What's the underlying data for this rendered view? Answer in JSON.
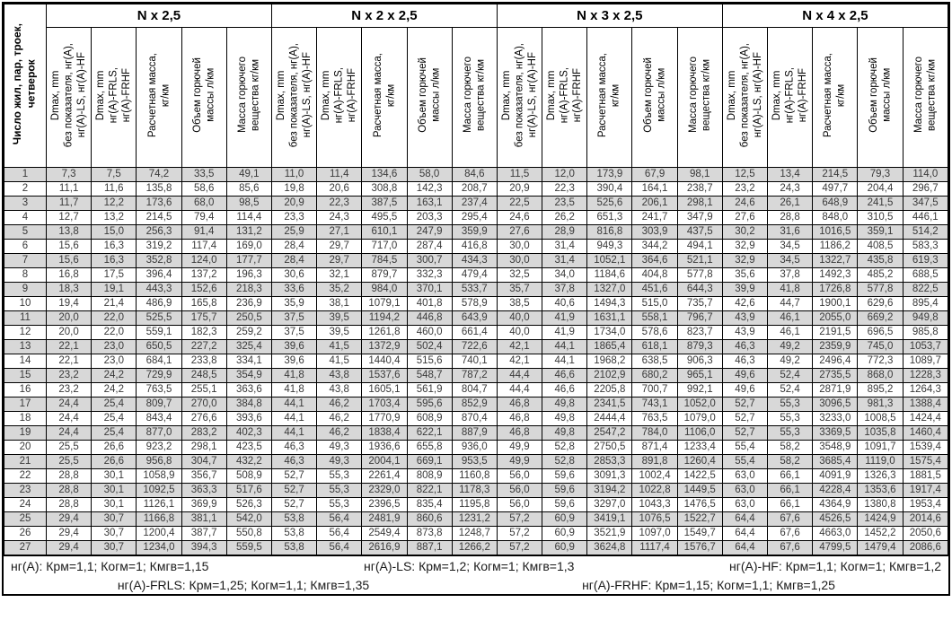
{
  "table": {
    "corner_header": "Число жил, пар, троек,\nчетверок",
    "groups": [
      "N x 2,5",
      "N x 2 x 2,5",
      "N x 3 x 2,5",
      "N x 4 x 2,5"
    ],
    "column_headers": [
      "Dmax, mm\nбез показателя, нг(А),\nнг(А)-LS, нг(А)-HF",
      "Dmax, mm\nнг(А)-FRLS,\nнг(А)-FRHF",
      "Расчетная масса,\nкг/км",
      "Объем горючей\nмассы л/км",
      "Масса горючего\nвещества кг/км"
    ],
    "rows": [
      [
        "1",
        "7,3",
        "7,5",
        "74,2",
        "33,5",
        "49,1",
        "11,0",
        "11,4",
        "134,6",
        "58,0",
        "84,6",
        "11,5",
        "12,0",
        "173,9",
        "67,9",
        "98,1",
        "12,5",
        "13,4",
        "214,5",
        "79,3",
        "114,0"
      ],
      [
        "2",
        "11,1",
        "11,6",
        "135,8",
        "58,6",
        "85,6",
        "19,8",
        "20,6",
        "308,8",
        "142,3",
        "208,7",
        "20,9",
        "22,3",
        "390,4",
        "164,1",
        "238,7",
        "23,2",
        "24,3",
        "497,7",
        "204,4",
        "296,7"
      ],
      [
        "3",
        "11,7",
        "12,2",
        "173,6",
        "68,0",
        "98,5",
        "20,9",
        "22,3",
        "387,5",
        "163,1",
        "237,4",
        "22,5",
        "23,5",
        "525,6",
        "206,1",
        "298,1",
        "24,6",
        "26,1",
        "648,9",
        "241,5",
        "347,5"
      ],
      [
        "4",
        "12,7",
        "13,2",
        "214,5",
        "79,4",
        "114,4",
        "23,3",
        "24,3",
        "495,5",
        "203,3",
        "295,4",
        "24,6",
        "26,2",
        "651,3",
        "241,7",
        "347,9",
        "27,6",
        "28,8",
        "848,0",
        "310,5",
        "446,1"
      ],
      [
        "5",
        "13,8",
        "15,0",
        "256,3",
        "91,4",
        "131,2",
        "25,9",
        "27,1",
        "610,1",
        "247,9",
        "359,9",
        "27,6",
        "28,9",
        "816,8",
        "303,9",
        "437,5",
        "30,2",
        "31,6",
        "1016,5",
        "359,1",
        "514,2"
      ],
      [
        "6",
        "15,6",
        "16,3",
        "319,2",
        "117,4",
        "169,0",
        "28,4",
        "29,7",
        "717,0",
        "287,4",
        "416,8",
        "30,0",
        "31,4",
        "949,3",
        "344,2",
        "494,1",
        "32,9",
        "34,5",
        "1186,2",
        "408,5",
        "583,3"
      ],
      [
        "7",
        "15,6",
        "16,3",
        "352,8",
        "124,0",
        "177,7",
        "28,4",
        "29,7",
        "784,5",
        "300,7",
        "434,3",
        "30,0",
        "31,4",
        "1052,1",
        "364,6",
        "521,1",
        "32,9",
        "34,5",
        "1322,7",
        "435,8",
        "619,3"
      ],
      [
        "8",
        "16,8",
        "17,5",
        "396,4",
        "137,2",
        "196,3",
        "30,6",
        "32,1",
        "879,7",
        "332,3",
        "479,4",
        "32,5",
        "34,0",
        "1184,6",
        "404,8",
        "577,8",
        "35,6",
        "37,8",
        "1492,3",
        "485,2",
        "688,5"
      ],
      [
        "9",
        "18,3",
        "19,1",
        "443,3",
        "152,6",
        "218,3",
        "33,6",
        "35,2",
        "984,0",
        "370,1",
        "533,7",
        "35,7",
        "37,8",
        "1327,0",
        "451,6",
        "644,3",
        "39,9",
        "41,8",
        "1726,8",
        "577,8",
        "822,5"
      ],
      [
        "10",
        "19,4",
        "21,4",
        "486,9",
        "165,8",
        "236,9",
        "35,9",
        "38,1",
        "1079,1",
        "401,8",
        "578,9",
        "38,5",
        "40,6",
        "1494,3",
        "515,0",
        "735,7",
        "42,6",
        "44,7",
        "1900,1",
        "629,6",
        "895,4"
      ],
      [
        "11",
        "20,0",
        "22,0",
        "525,5",
        "175,7",
        "250,5",
        "37,5",
        "39,5",
        "1194,2",
        "446,8",
        "643,9",
        "40,0",
        "41,9",
        "1631,1",
        "558,1",
        "796,7",
        "43,9",
        "46,1",
        "2055,0",
        "669,2",
        "949,8"
      ],
      [
        "12",
        "20,0",
        "22,0",
        "559,1",
        "182,3",
        "259,2",
        "37,5",
        "39,5",
        "1261,8",
        "460,0",
        "661,4",
        "40,0",
        "41,9",
        "1734,0",
        "578,6",
        "823,7",
        "43,9",
        "46,1",
        "2191,5",
        "696,5",
        "985,8"
      ],
      [
        "13",
        "22,1",
        "23,0",
        "650,5",
        "227,2",
        "325,4",
        "39,6",
        "41,5",
        "1372,9",
        "502,4",
        "722,6",
        "42,1",
        "44,1",
        "1865,4",
        "618,1",
        "879,3",
        "46,3",
        "49,2",
        "2359,9",
        "745,0",
        "1053,7"
      ],
      [
        "14",
        "22,1",
        "23,0",
        "684,1",
        "233,8",
        "334,1",
        "39,6",
        "41,5",
        "1440,4",
        "515,6",
        "740,1",
        "42,1",
        "44,1",
        "1968,2",
        "638,5",
        "906,3",
        "46,3",
        "49,2",
        "2496,4",
        "772,3",
        "1089,7"
      ],
      [
        "15",
        "23,2",
        "24,2",
        "729,9",
        "248,5",
        "354,9",
        "41,8",
        "43,8",
        "1537,6",
        "548,7",
        "787,2",
        "44,4",
        "46,6",
        "2102,9",
        "680,2",
        "965,1",
        "49,6",
        "52,4",
        "2735,5",
        "868,0",
        "1228,3"
      ],
      [
        "16",
        "23,2",
        "24,2",
        "763,5",
        "255,1",
        "363,6",
        "41,8",
        "43,8",
        "1605,1",
        "561,9",
        "804,7",
        "44,4",
        "46,6",
        "2205,8",
        "700,7",
        "992,1",
        "49,6",
        "52,4",
        "2871,9",
        "895,2",
        "1264,3"
      ],
      [
        "17",
        "24,4",
        "25,4",
        "809,7",
        "270,0",
        "384,8",
        "44,1",
        "46,2",
        "1703,4",
        "595,6",
        "852,9",
        "46,8",
        "49,8",
        "2341,5",
        "743,1",
        "1052,0",
        "52,7",
        "55,3",
        "3096,5",
        "981,3",
        "1388,4"
      ],
      [
        "18",
        "24,4",
        "25,4",
        "843,4",
        "276,6",
        "393,6",
        "44,1",
        "46,2",
        "1770,9",
        "608,9",
        "870,4",
        "46,8",
        "49,8",
        "2444,4",
        "763,5",
        "1079,0",
        "52,7",
        "55,3",
        "3233,0",
        "1008,5",
        "1424,4"
      ],
      [
        "19",
        "24,4",
        "25,4",
        "877,0",
        "283,2",
        "402,3",
        "44,1",
        "46,2",
        "1838,4",
        "622,1",
        "887,9",
        "46,8",
        "49,8",
        "2547,2",
        "784,0",
        "1106,0",
        "52,7",
        "55,3",
        "3369,5",
        "1035,8",
        "1460,4"
      ],
      [
        "20",
        "25,5",
        "26,6",
        "923,2",
        "298,1",
        "423,5",
        "46,3",
        "49,3",
        "1936,6",
        "655,8",
        "936,0",
        "49,9",
        "52,8",
        "2750,5",
        "871,4",
        "1233,4",
        "55,4",
        "58,2",
        "3548,9",
        "1091,7",
        "1539,4"
      ],
      [
        "21",
        "25,5",
        "26,6",
        "956,8",
        "304,7",
        "432,2",
        "46,3",
        "49,3",
        "2004,1",
        "669,1",
        "953,5",
        "49,9",
        "52,8",
        "2853,3",
        "891,8",
        "1260,4",
        "55,4",
        "58,2",
        "3685,4",
        "1119,0",
        "1575,4"
      ],
      [
        "22",
        "28,8",
        "30,1",
        "1058,9",
        "356,7",
        "508,9",
        "52,7",
        "55,3",
        "2261,4",
        "808,9",
        "1160,8",
        "56,0",
        "59,6",
        "3091,3",
        "1002,4",
        "1422,5",
        "63,0",
        "66,1",
        "4091,9",
        "1326,3",
        "1881,5"
      ],
      [
        "23",
        "28,8",
        "30,1",
        "1092,5",
        "363,3",
        "517,6",
        "52,7",
        "55,3",
        "2329,0",
        "822,1",
        "1178,3",
        "56,0",
        "59,6",
        "3194,2",
        "1022,8",
        "1449,5",
        "63,0",
        "66,1",
        "4228,4",
        "1353,6",
        "1917,4"
      ],
      [
        "24",
        "28,8",
        "30,1",
        "1126,1",
        "369,9",
        "526,3",
        "52,7",
        "55,3",
        "2396,5",
        "835,4",
        "1195,8",
        "56,0",
        "59,6",
        "3297,0",
        "1043,3",
        "1476,5",
        "63,0",
        "66,1",
        "4364,9",
        "1380,8",
        "1953,4"
      ],
      [
        "25",
        "29,4",
        "30,7",
        "1166,8",
        "381,1",
        "542,0",
        "53,8",
        "56,4",
        "2481,9",
        "860,6",
        "1231,2",
        "57,2",
        "60,9",
        "3419,1",
        "1076,5",
        "1522,7",
        "64,4",
        "67,6",
        "4526,5",
        "1424,9",
        "2014,6"
      ],
      [
        "26",
        "29,4",
        "30,7",
        "1200,4",
        "387,7",
        "550,8",
        "53,8",
        "56,4",
        "2549,4",
        "873,8",
        "1248,7",
        "57,2",
        "60,9",
        "3521,9",
        "1097,0",
        "1549,7",
        "64,4",
        "67,6",
        "4663,0",
        "1452,2",
        "2050,6"
      ],
      [
        "27",
        "29,4",
        "30,7",
        "1234,0",
        "394,3",
        "559,5",
        "53,8",
        "56,4",
        "2616,9",
        "887,1",
        "1266,2",
        "57,2",
        "60,9",
        "3624,8",
        "1117,4",
        "1576,7",
        "64,4",
        "67,6",
        "4799,5",
        "1479,4",
        "2086,6"
      ]
    ]
  },
  "footer": {
    "line1": [
      "нг(А): Крм=1,1;  Когм=1;  Кмгв=1,15",
      "нг(А)-LS: Крм=1,2;  Когм=1;  Кмгв=1,3",
      "нг(А)-HF: Крм=1,1;  Когм=1;  Кмгв=1,2"
    ],
    "line2": [
      "нг(А)-FRLS: Крм=1,25;  Когм=1,1;  Кмгв=1,35",
      "нг(А)-FRHF: Крм=1,15;  Когм=1,1;  Кмгв=1,25"
    ]
  },
  "colors": {
    "stripe": "#d8d8d8",
    "border": "#000000",
    "data_text": "#3a3a3a"
  }
}
